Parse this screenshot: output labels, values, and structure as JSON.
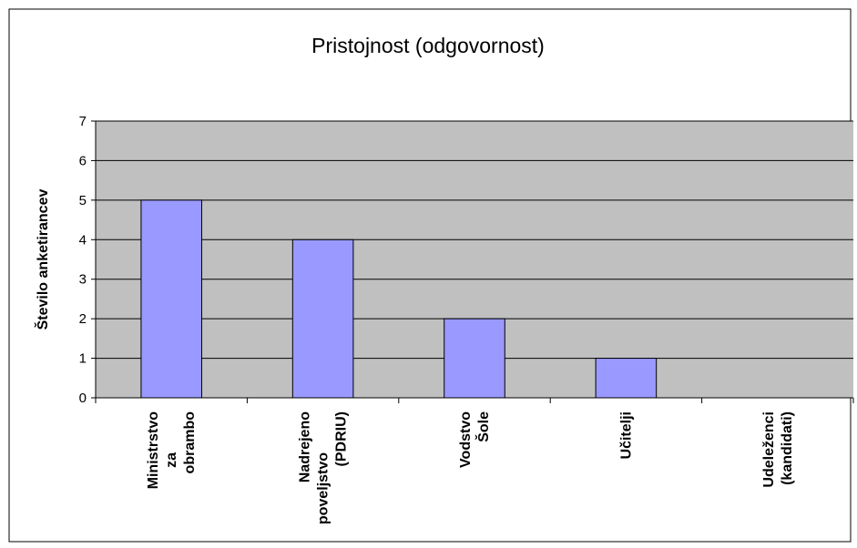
{
  "chart_data": {
    "type": "bar",
    "title": "Pristojnost (odgovornost)",
    "ylabel": "Število anketirancev",
    "categories": [
      "Ministrstvo za obrambo",
      "Nadrejeno poveljstvo (PDRIU)",
      "Vodstvo Šole",
      "Učitelji",
      "Udeleženci (kandidati)"
    ],
    "values": [
      5,
      4,
      2,
      1,
      0
    ],
    "color": "#9999ff",
    "plot_background": "#c0c0c0",
    "ylim": [
      0,
      7
    ],
    "yticks": [
      0,
      1,
      2,
      3,
      4,
      5,
      6,
      7
    ],
    "grid": true
  }
}
